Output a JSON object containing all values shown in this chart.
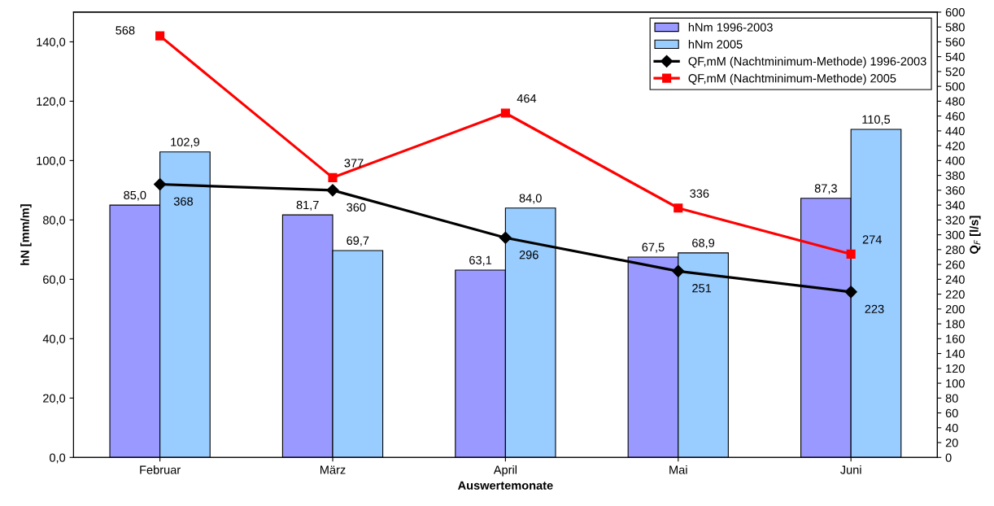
{
  "chart_data": {
    "type": "bar",
    "xlabel": "Auswertemonate",
    "ylabel": "hN [mm/m]",
    "y2label": "Q$_{F}$ [l/s]",
    "categories": [
      "Februar",
      "März",
      "April",
      "Mai",
      "Juni"
    ],
    "series": [
      {
        "name": "hNm 1996-2003",
        "color": "#9999ff",
        "values": [
          85.0,
          81.7,
          63.1,
          67.5,
          87.3
        ],
        "value_labels": [
          "85,0",
          "81,7",
          "63,1",
          "67,5",
          "87,3"
        ]
      },
      {
        "name": "hNm 2005",
        "color": "#99ccff",
        "values": [
          102.9,
          69.7,
          84.0,
          68.9,
          110.5
        ],
        "value_labels": [
          "102,9",
          "69,7",
          "84,0",
          "68,9",
          "110,5"
        ]
      },
      {
        "name": "QF,mM (Nachtminimum-Methode) 1996-2003",
        "type": "line",
        "axis": "y2",
        "color": "#000000",
        "marker": "diamond",
        "values": [
          368,
          360,
          296,
          251,
          223
        ],
        "value_labels": [
          "368",
          "360",
          "296",
          "251",
          "223"
        ]
      },
      {
        "name": "QF,mM (Nachtminimum-Methode) 2005",
        "type": "line",
        "axis": "y2",
        "color": "#ff0000",
        "marker": "square",
        "values": [
          568,
          377,
          464,
          336,
          274
        ],
        "value_labels": [
          "568",
          "377",
          "464",
          "336",
          "274"
        ]
      }
    ],
    "ylim": [
      0,
      150
    ],
    "yticks": [
      {
        "value": 0,
        "label": "0,0"
      },
      {
        "value": 20,
        "label": "20,0"
      },
      {
        "value": 40,
        "label": "40,0"
      },
      {
        "value": 60,
        "label": "60,0"
      },
      {
        "value": 80,
        "label": "80,0"
      },
      {
        "value": 100,
        "label": "100,0"
      },
      {
        "value": 120,
        "label": "120,0"
      },
      {
        "value": 140,
        "label": "140,0"
      }
    ],
    "y2lim": [
      0,
      600
    ],
    "y2ticks": [
      0,
      20,
      40,
      60,
      80,
      100,
      120,
      140,
      160,
      180,
      200,
      220,
      240,
      260,
      280,
      300,
      320,
      340,
      360,
      380,
      400,
      420,
      440,
      460,
      480,
      500,
      520,
      540,
      560,
      580,
      600
    ],
    "legend": "top right",
    "grid": false
  }
}
